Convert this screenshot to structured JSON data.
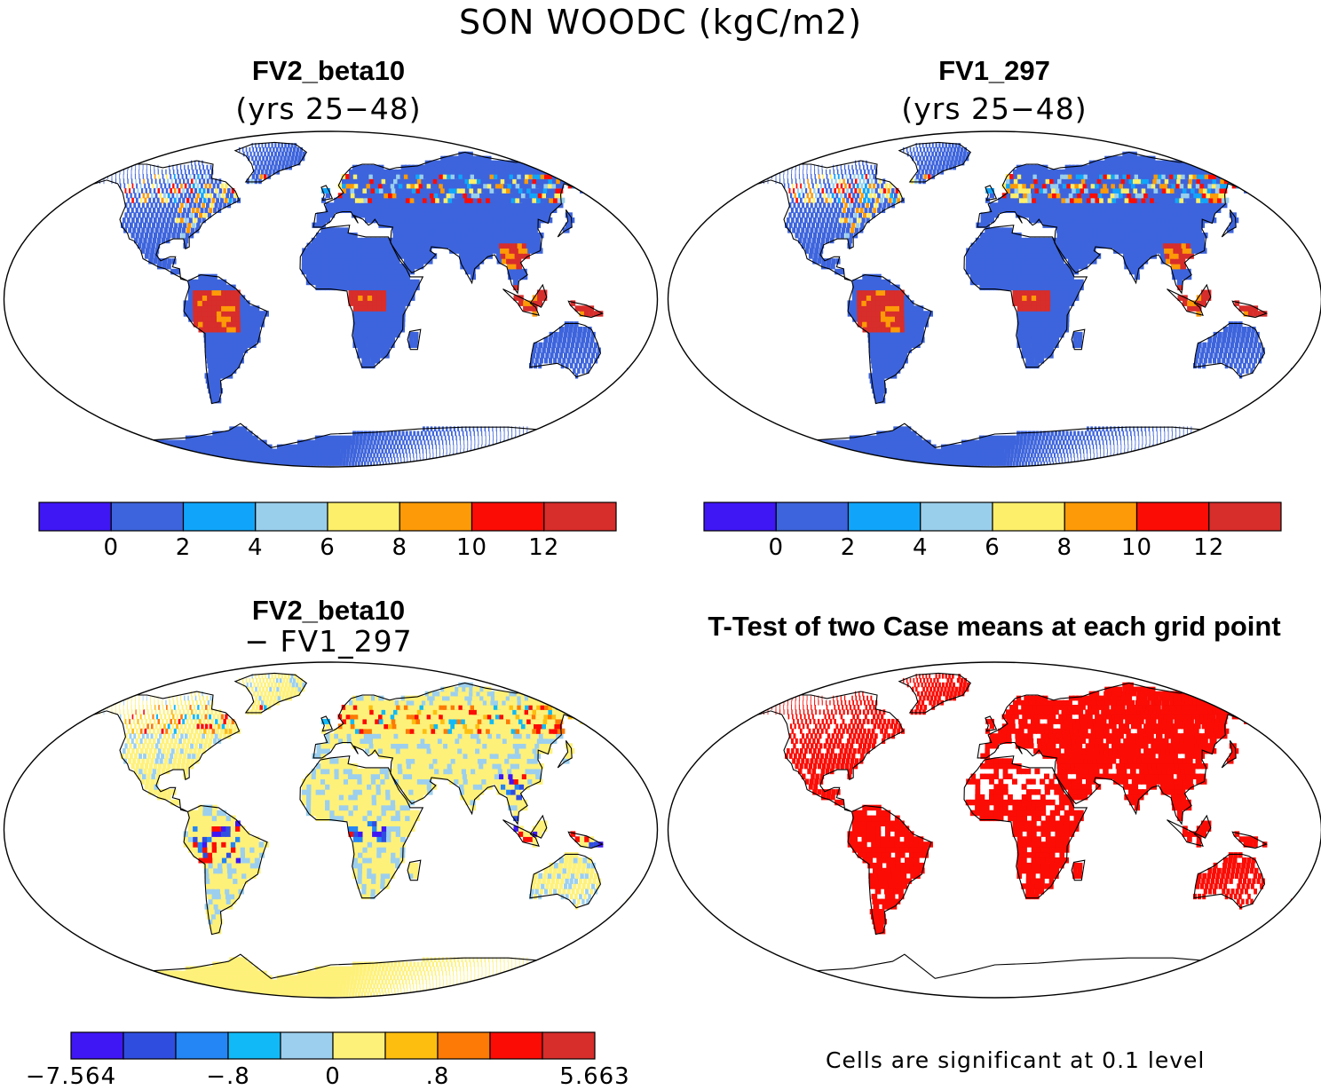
{
  "figure": {
    "title": "SON WOODC (kgC/m2)"
  },
  "panels": [
    {
      "id": "fv2",
      "title": "FV2_beta10",
      "subtitle": "(yrs 25−48)"
    },
    {
      "id": "fv1",
      "title": "FV1_297",
      "subtitle": "(yrs 25−48)"
    },
    {
      "id": "diff",
      "title": "FV2_beta10",
      "subtitle": "− FV1_297"
    },
    {
      "id": "ttest",
      "title": "T-Test of two Case means at each grid point",
      "subtitle": ""
    }
  ],
  "colorbars": {
    "absolute": {
      "colors": [
        "#3f17f5",
        "#3d64dc",
        "#10a5fb",
        "#9acfec",
        "#fdef6a",
        "#fd9a07",
        "#fb0c05",
        "#d72d2b"
      ],
      "tick_labels": [
        "0",
        "2",
        "4",
        "6",
        "8",
        "10",
        "12"
      ]
    },
    "difference": {
      "colors": [
        "#3f17f5",
        "#2f4ee0",
        "#2485f5",
        "#11baf6",
        "#9ccfee",
        "#fef17a",
        "#fdbe10",
        "#fc7a05",
        "#fb0c05",
        "#d72d2b"
      ],
      "tick_labels": [
        "−7.564",
        "−.8",
        "0",
        ".8",
        "5.663"
      ],
      "tick_positions": [
        0,
        3,
        5,
        7,
        10
      ]
    }
  },
  "legend_note": "Cells are significant at 0.1 level",
  "map_colors": {
    "land_low": "#3d64dc",
    "tropical_forest": "#d72d2b",
    "boreal_mix": "#fb0c05",
    "diff_base": "#fef17a",
    "diff_light_blue": "#9ccfee",
    "significant": "#fb0c05",
    "coastline": "#000000"
  }
}
